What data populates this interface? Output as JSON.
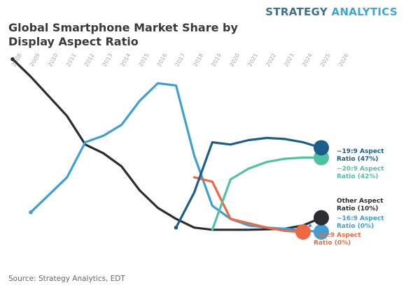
{
  "brand": {
    "part1": "STRATEGY",
    "part2": "ANALYTICS"
  },
  "title": "Global Smartphone Market Share by Display Aspect Ratio",
  "source": "Source: Strategy Analytics, EDT",
  "chart_data": {
    "type": "line",
    "title": "Global Smartphone Market Share by Display Aspect Ratio",
    "xlabel": "",
    "ylabel": "",
    "x": [
      2008,
      2009,
      2010,
      2011,
      2012,
      2013,
      2014,
      2015,
      2016,
      2017,
      2018,
      2019,
      2020,
      2021,
      2022,
      2023,
      2024,
      2025,
      2026
    ],
    "xlim": [
      2008,
      2026
    ],
    "ylim": [
      0,
      90
    ],
    "grid": false,
    "legend": "none",
    "series": [
      {
        "name": "Other Aspect Ratio",
        "color": "#2a2d33",
        "end_label_lines": [
          "Other Aspect",
          "Ratio (10%)"
        ],
        "points": [
          [
            2008,
            87
          ],
          [
            2009,
            79
          ],
          [
            2010,
            70
          ],
          [
            2011,
            61
          ],
          [
            2012,
            48
          ],
          [
            2013,
            44
          ],
          [
            2014,
            38
          ],
          [
            2015,
            27
          ],
          [
            2016,
            19
          ],
          [
            2017,
            14
          ],
          [
            2018,
            10
          ],
          [
            2019,
            9
          ],
          [
            2020,
            9
          ],
          [
            2021,
            9
          ],
          [
            2022,
            9.2
          ],
          [
            2023,
            9.5
          ],
          [
            2024,
            11
          ],
          [
            2025,
            14.5
          ]
        ]
      },
      {
        "name": "~16:9 Aspect Ratio",
        "color": "#3d9fd6",
        "end_label_lines": [
          "~16:9 Aspect",
          "Ratio (0%)"
        ],
        "points": [
          [
            2009,
            17
          ],
          [
            2010,
            25
          ],
          [
            2011,
            33
          ],
          [
            2012,
            49
          ],
          [
            2013,
            52
          ],
          [
            2014,
            57
          ],
          [
            2015,
            68
          ],
          [
            2016,
            76
          ],
          [
            2017,
            75
          ],
          [
            2018,
            43
          ],
          [
            2019,
            20
          ],
          [
            2020,
            14
          ],
          [
            2021,
            11
          ],
          [
            2022,
            10
          ],
          [
            2023,
            9.5
          ],
          [
            2025,
            8
          ]
        ]
      },
      {
        "name": "~18:9 Aspect Ratio",
        "color": "#ee6844",
        "end_label_lines": [
          "~18:9 Aspect",
          "Ratio (0%)"
        ],
        "points": [
          [
            2018,
            33
          ],
          [
            2019,
            31
          ],
          [
            2020,
            14
          ],
          [
            2021,
            12
          ],
          [
            2022,
            10
          ],
          [
            2023,
            8.5
          ],
          [
            2024,
            8
          ]
        ]
      },
      {
        "name": "~19:9 Aspect Ratio",
        "color": "#1b5e8a",
        "end_label_lines": [
          "~19:9 Aspect",
          "Ratio (47%)"
        ],
        "points": [
          [
            2017,
            10
          ],
          [
            2018,
            26
          ],
          [
            2019,
            49
          ],
          [
            2020,
            48
          ],
          [
            2021,
            50
          ],
          [
            2022,
            51
          ],
          [
            2023,
            50.5
          ],
          [
            2024,
            49
          ],
          [
            2025,
            46.5
          ]
        ]
      },
      {
        "name": "~20:9 Aspect Ratio",
        "color": "#4fc3a1",
        "end_label_lines": [
          "~20:9 Aspect",
          "Ratio (42%)"
        ],
        "points": [
          [
            2019,
            9
          ],
          [
            2020,
            32
          ],
          [
            2021,
            37
          ],
          [
            2022,
            40
          ],
          [
            2023,
            41.5
          ],
          [
            2024,
            42
          ],
          [
            2025,
            42
          ]
        ]
      }
    ]
  }
}
